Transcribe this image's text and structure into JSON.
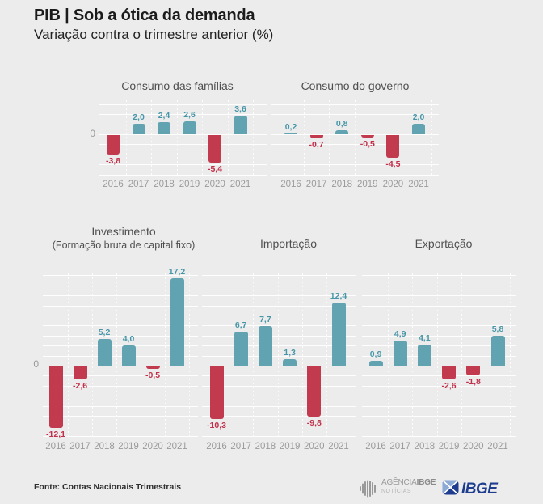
{
  "header": {
    "title": "PIB | Sob a ótica da demanda",
    "subtitle": "Variação contra o trimestre anterior (%)"
  },
  "colors": {
    "positive": "#61a3b0",
    "negative": "#c23a4e",
    "positive_text": "#4696a8",
    "negative_text": "#c22f4a",
    "axis_text": "#9b9b9b",
    "chart_title": "#4f4f4f",
    "background": "#ececec",
    "ibge_blue": "#1e3d8f",
    "ibge_light_blue": "#8da9d6"
  },
  "chart_data": [
    {
      "type": "bar",
      "title": "Consumo das famílias",
      "categories": [
        "2016",
        "2017",
        "2018",
        "2019",
        "2020",
        "2021"
      ],
      "values": [
        -3.8,
        2.0,
        2.4,
        2.6,
        -5.4,
        3.6
      ],
      "labels": [
        "-3,8",
        "2,0",
        "2,4",
        "2,6",
        "-5,4",
        "3,6"
      ],
      "zero_label": "0",
      "ylim": [
        -8,
        7
      ],
      "grid_step": 2,
      "ylabel": ""
    },
    {
      "type": "bar",
      "title": "Consumo do governo",
      "categories": [
        "2016",
        "2017",
        "2018",
        "2019",
        "2020",
        "2021"
      ],
      "values": [
        0.2,
        -0.7,
        0.8,
        -0.5,
        -4.5,
        2.0
      ],
      "labels": [
        "0,2",
        "-0,7",
        "0,8",
        "-0,5",
        "-4,5",
        "2,0"
      ],
      "ylim": [
        -8,
        7
      ],
      "grid_step": 2,
      "ylabel": ""
    },
    {
      "type": "bar",
      "title": "Investimento",
      "subtitle": "(Formação bruta de capital fixo)",
      "categories": [
        "2016",
        "2017",
        "2018",
        "2019",
        "2020",
        "2021"
      ],
      "values": [
        -12.1,
        -2.6,
        5.2,
        4.0,
        -0.5,
        17.2
      ],
      "labels": [
        "-12,1",
        "-2,6",
        "5,2",
        "4,0",
        "-0,5",
        "17,2"
      ],
      "zero_label": "0",
      "ylim": [
        -14,
        18
      ],
      "grid_step": 2,
      "ylabel": ""
    },
    {
      "type": "bar",
      "title": "Importação",
      "categories": [
        "2016",
        "2017",
        "2018",
        "2019",
        "2020",
        "2021"
      ],
      "values": [
        -10.3,
        6.7,
        7.7,
        1.3,
        -9.8,
        12.4
      ],
      "labels": [
        "-10,3",
        "6,7",
        "7,7",
        "1,3",
        "-9,8",
        "12,4"
      ],
      "ylim": [
        -14,
        18
      ],
      "grid_step": 2,
      "ylabel": ""
    },
    {
      "type": "bar",
      "title": "Exportação",
      "categories": [
        "2016",
        "2017",
        "2018",
        "2019",
        "2020",
        "2021"
      ],
      "values": [
        0.9,
        4.9,
        4.1,
        -2.6,
        -1.8,
        5.8
      ],
      "labels": [
        "0,9",
        "4,9",
        "4,1",
        "-2,6",
        "-1,8",
        "5,8"
      ],
      "ylim": [
        -14,
        18
      ],
      "grid_step": 2,
      "ylabel": ""
    }
  ],
  "footer": {
    "source": "Fonte: Contas Nacionais Trimestrais",
    "agencia_logo": {
      "line1_light": "AGÊNCIA",
      "line1_bold": "IBGE",
      "line2": "NOTÍCIAS"
    },
    "ibge_logo_text": "IBGE"
  }
}
